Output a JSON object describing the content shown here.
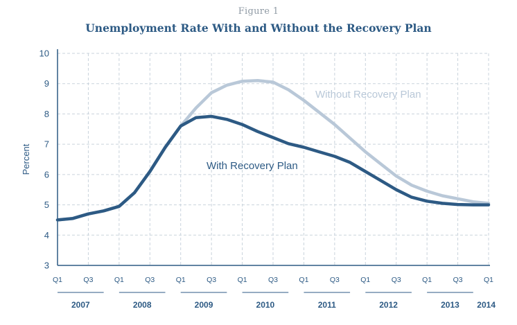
{
  "figure_label": "Figure 1",
  "chart_data": {
    "type": "line",
    "title": "Unemployment Rate With and Without the Recovery Plan",
    "ylabel": "Percent",
    "xlabel": "",
    "ylim": [
      3,
      10
    ],
    "yticks": [
      3,
      4,
      5,
      6,
      7,
      8,
      9,
      10
    ],
    "grid": true,
    "x": [
      "2007 Q1",
      "2007 Q2",
      "2007 Q3",
      "2007 Q4",
      "2008 Q1",
      "2008 Q2",
      "2008 Q3",
      "2008 Q4",
      "2009 Q1",
      "2009 Q2",
      "2009 Q3",
      "2009 Q4",
      "2010 Q1",
      "2010 Q2",
      "2010 Q3",
      "2010 Q4",
      "2011 Q1",
      "2011 Q2",
      "2011 Q3",
      "2011 Q4",
      "2012 Q1",
      "2012 Q2",
      "2012 Q3",
      "2012 Q4",
      "2013 Q1",
      "2013 Q2",
      "2013 Q3",
      "2013 Q4",
      "2014 Q1"
    ],
    "x_tick_labels": [
      "Q1",
      "Q3",
      "Q1",
      "Q3",
      "Q1",
      "Q3",
      "Q1",
      "Q3",
      "Q1",
      "Q3",
      "Q1",
      "Q3",
      "Q1",
      "Q3",
      "Q1"
    ],
    "years": [
      "2007",
      "2008",
      "2009",
      "2010",
      "2011",
      "2012",
      "2013",
      "2014"
    ],
    "series": [
      {
        "name": "Without Recovery Plan",
        "color": "#b9c8d8",
        "values": [
          4.5,
          4.55,
          4.7,
          4.8,
          4.95,
          5.4,
          6.1,
          6.9,
          7.6,
          8.2,
          8.7,
          8.95,
          9.08,
          9.1,
          9.05,
          8.8,
          8.45,
          8.05,
          7.65,
          7.2,
          6.75,
          6.35,
          5.95,
          5.65,
          5.45,
          5.3,
          5.2,
          5.1,
          5.05
        ]
      },
      {
        "name": "With Recovery Plan",
        "color": "#2d5a84",
        "values": [
          4.5,
          4.55,
          4.7,
          4.8,
          4.95,
          5.4,
          6.1,
          6.9,
          7.6,
          7.88,
          7.92,
          7.82,
          7.65,
          7.42,
          7.22,
          7.02,
          6.9,
          6.75,
          6.6,
          6.4,
          6.1,
          5.8,
          5.5,
          5.25,
          5.12,
          5.05,
          5.01,
          5.0,
          5.0
        ]
      }
    ]
  }
}
